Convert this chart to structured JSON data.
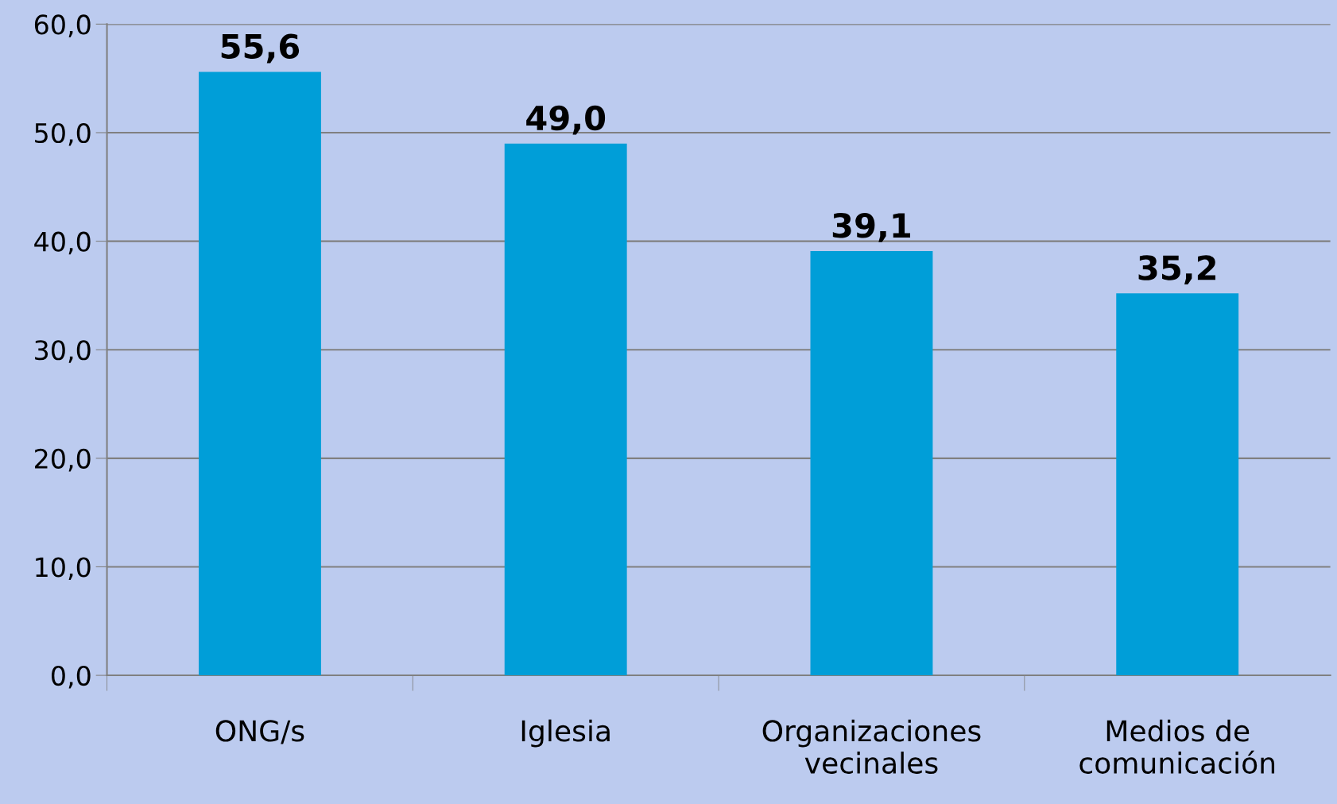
{
  "chart_data": {
    "type": "bar",
    "categories": [
      "ONG/s",
      "Iglesia",
      "Organizaciones vecinales",
      "Medios de comunicación"
    ],
    "values": [
      55.6,
      49.0,
      39.1,
      35.2
    ],
    "value_labels": [
      "55,6",
      "49,0",
      "39,1",
      "35,2"
    ],
    "color": "#009ed8",
    "ylim": [
      0,
      60
    ],
    "yticks": [
      {
        "value": 0,
        "label": "0,0"
      },
      {
        "value": 10,
        "label": "10,0"
      },
      {
        "value": 20,
        "label": "20,0"
      },
      {
        "value": 30,
        "label": "30,0"
      },
      {
        "value": 40,
        "label": "40,0"
      },
      {
        "value": 50,
        "label": "50,0"
      },
      {
        "value": 60,
        "label": "60,0"
      }
    ],
    "grid": "y",
    "legend": false
  }
}
